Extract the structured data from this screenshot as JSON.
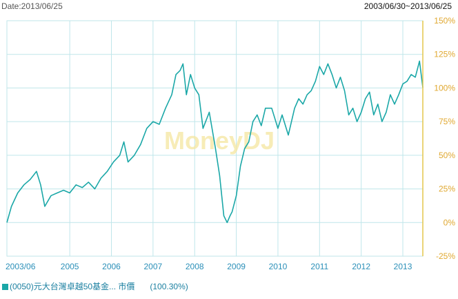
{
  "header": {
    "date_label": "Date:2013/06/25",
    "range_label": "2003/06/30~2013/06/25"
  },
  "watermark": "MoneyDJ",
  "legend": {
    "series_label": "(0050)元大台灣卓越50基金... 市價",
    "value_label": "(100.30%)"
  },
  "colors": {
    "series": "#1aa7a7",
    "grid": "#bfe6ea",
    "right_axis": "#e3c54a",
    "right_tick": "#e0a830",
    "x_tick": "#2a8fb8",
    "watermark": "#f5e6a0"
  },
  "chart_data": {
    "type": "line",
    "title": "",
    "xlabel": "",
    "ylabel": "",
    "x_range": [
      2003.49,
      2013.48
    ],
    "ylim": [
      -25,
      150
    ],
    "y_ticks": [
      -25,
      0,
      25,
      50,
      75,
      100,
      125,
      150
    ],
    "y_tick_labels": [
      "-25%",
      "0%",
      "25%",
      "50%",
      "75%",
      "100%",
      "125%",
      "150%"
    ],
    "x_ticks": [
      2003.49,
      2005,
      2006,
      2007,
      2008,
      2009,
      2010,
      2011,
      2012,
      2013
    ],
    "x_tick_labels": [
      "2003/06",
      "2005",
      "2006",
      "2007",
      "2008",
      "2009",
      "2010",
      "2011",
      "2012",
      "2013"
    ],
    "grid": true,
    "series": [
      {
        "name": "(0050)元大台灣卓越50基金... 市價",
        "x": [
          2003.49,
          2003.6,
          2003.75,
          2003.9,
          2004.05,
          2004.2,
          2004.3,
          2004.4,
          2004.55,
          2004.7,
          2004.85,
          2005.0,
          2005.15,
          2005.3,
          2005.45,
          2005.6,
          2005.75,
          2005.9,
          2006.05,
          2006.2,
          2006.3,
          2006.4,
          2006.55,
          2006.7,
          2006.85,
          2007.0,
          2007.15,
          2007.3,
          2007.45,
          2007.55,
          2007.65,
          2007.72,
          2007.8,
          2007.9,
          2008.0,
          2008.1,
          2008.2,
          2008.35,
          2008.5,
          2008.6,
          2008.7,
          2008.78,
          2008.85,
          2008.9,
          2009.0,
          2009.1,
          2009.2,
          2009.3,
          2009.4,
          2009.5,
          2009.6,
          2009.7,
          2009.85,
          2010.0,
          2010.1,
          2010.25,
          2010.4,
          2010.5,
          2010.6,
          2010.7,
          2010.8,
          2010.9,
          2011.0,
          2011.1,
          2011.2,
          2011.3,
          2011.4,
          2011.5,
          2011.6,
          2011.7,
          2011.8,
          2011.9,
          2012.0,
          2012.1,
          2012.2,
          2012.3,
          2012.4,
          2012.5,
          2012.6,
          2012.7,
          2012.8,
          2012.9,
          2013.0,
          2013.1,
          2013.2,
          2013.3,
          2013.4,
          2013.48
        ],
        "values": [
          0,
          12,
          22,
          28,
          32,
          38,
          28,
          12,
          20,
          22,
          24,
          22,
          28,
          26,
          30,
          25,
          33,
          38,
          45,
          50,
          60,
          45,
          50,
          58,
          70,
          75,
          73,
          85,
          95,
          110,
          113,
          118,
          95,
          110,
          100,
          95,
          70,
          82,
          55,
          35,
          5,
          0,
          5,
          8,
          20,
          42,
          55,
          60,
          75,
          80,
          72,
          85,
          85,
          70,
          80,
          65,
          85,
          92,
          88,
          95,
          98,
          105,
          116,
          110,
          118,
          110,
          100,
          108,
          98,
          80,
          85,
          75,
          82,
          92,
          97,
          80,
          88,
          75,
          82,
          95,
          88,
          95,
          103,
          105,
          110,
          108,
          120,
          100.3
        ]
      }
    ]
  }
}
